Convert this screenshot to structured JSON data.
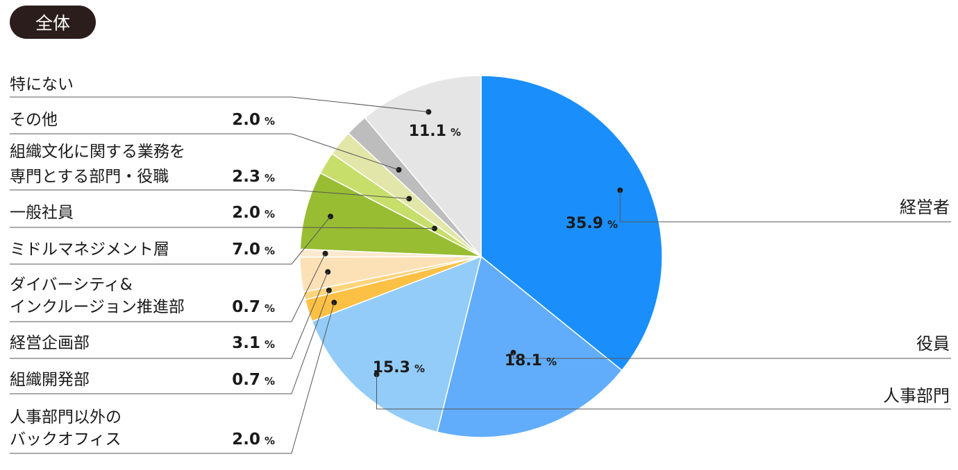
{
  "badge": "全体",
  "colors": {
    "badge_bg": "#2b1d1b",
    "slice_border": "#ffffff"
  },
  "chart_data": {
    "type": "pie",
    "start_angle_deg": 0,
    "direction": "clockwise",
    "slices": [
      {
        "label": [
          "経営者"
        ],
        "value": 35.9,
        "color": "#1a8ffc",
        "side": "right",
        "show_value_in_slice": true
      },
      {
        "label": [
          "役員"
        ],
        "value": 18.1,
        "color": "#62adfb",
        "side": "right",
        "show_value_in_slice": true
      },
      {
        "label": [
          "人事部門"
        ],
        "value": 15.3,
        "color": "#93ccf8",
        "side": "right",
        "show_value_in_slice": true
      },
      {
        "label": [
          "人事部門以外の",
          "バックオフィス"
        ],
        "value": 2.0,
        "color": "#fcc045",
        "side": "left"
      },
      {
        "label": [
          "組織開発部"
        ],
        "value": 0.7,
        "color": "#fdd47e",
        "side": "left"
      },
      {
        "label": [
          "経営企画部"
        ],
        "value": 3.1,
        "color": "#fde1b6",
        "side": "left"
      },
      {
        "label": [
          "ダイバーシティ&",
          "インクルージョン推進部"
        ],
        "value": 0.7,
        "color": "#fbe9cf",
        "side": "left"
      },
      {
        "label": [
          "ミドルマネジメント層"
        ],
        "value": 7.0,
        "color": "#98bd33",
        "side": "left"
      },
      {
        "label": [
          "一般社員"
        ],
        "value": 2.0,
        "color": "#c7df6a",
        "side": "left"
      },
      {
        "label": [
          "組織文化に関する業務を",
          "専門とする部門・役職"
        ],
        "value": 2.3,
        "color": "#e2e6a8",
        "side": "left"
      },
      {
        "label": [
          "その他"
        ],
        "value": 2.0,
        "color": "#bdbdbd",
        "side": "left"
      },
      {
        "label": [
          "特にない"
        ],
        "value": 11.1,
        "color": "#e5e5e5",
        "side": "left",
        "show_value_in_slice": true
      }
    ],
    "value_unit": "%"
  }
}
